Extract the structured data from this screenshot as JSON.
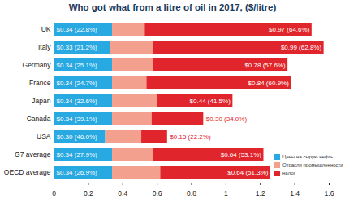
{
  "chart_data": {
    "type": "bar",
    "orientation": "horizontal",
    "stacked": true,
    "data_labels": true,
    "title": "Who got what from a litre of oil in 2017, ($/litre)",
    "categories": [
      "UK",
      "Italy",
      "Germany",
      "France",
      "Japan",
      "Canada",
      "USA",
      "G7 average",
      "OECD average"
    ],
    "series": [
      {
        "name": "Цены на сырую нефть",
        "color": "#29a9e1",
        "values": [
          0.34,
          0.33,
          0.34,
          0.34,
          0.34,
          0.34,
          0.3,
          0.34,
          0.34
        ],
        "value_labels": [
          "$0.34 (22.8%)",
          "$0.33 (21.2%)",
          "$0.34 (25.1%)",
          "$0.34 (24.7%)",
          "$0.34 (32.6%)",
          "$0.34 (39.1%)",
          "$0.30 (46.0%)",
          "$0.34 (27.9%)",
          "$0.34 (26.9%)"
        ]
      },
      {
        "name": "Отрасли промышленности",
        "color": "#f3a08f",
        "values": [
          0.19,
          0.25,
          0.24,
          0.2,
          0.26,
          0.23,
          0.21,
          0.24,
          0.28
        ]
      },
      {
        "name": "налог",
        "color": "#e1252c",
        "values": [
          0.97,
          0.99,
          0.78,
          0.84,
          0.44,
          0.3,
          0.15,
          0.64,
          0.64
        ],
        "value_labels": [
          "$0.97 (64.6%)",
          "$0.99 (62.8%)",
          "$0.78 (57.6%)",
          "$0.84 (60.9%)",
          "$0.44 (41.5%)",
          "$0.30 (34.0%)",
          "$0.15 (22.2%)",
          "$0.64 (53.1%)",
          "$0.64 (51.3%)"
        ]
      }
    ],
    "xlim": [
      0,
      1.6
    ],
    "xticks": [
      0,
      0.2,
      0.4,
      0.6,
      0.8,
      1,
      1.2,
      1.4,
      1.6
    ]
  }
}
